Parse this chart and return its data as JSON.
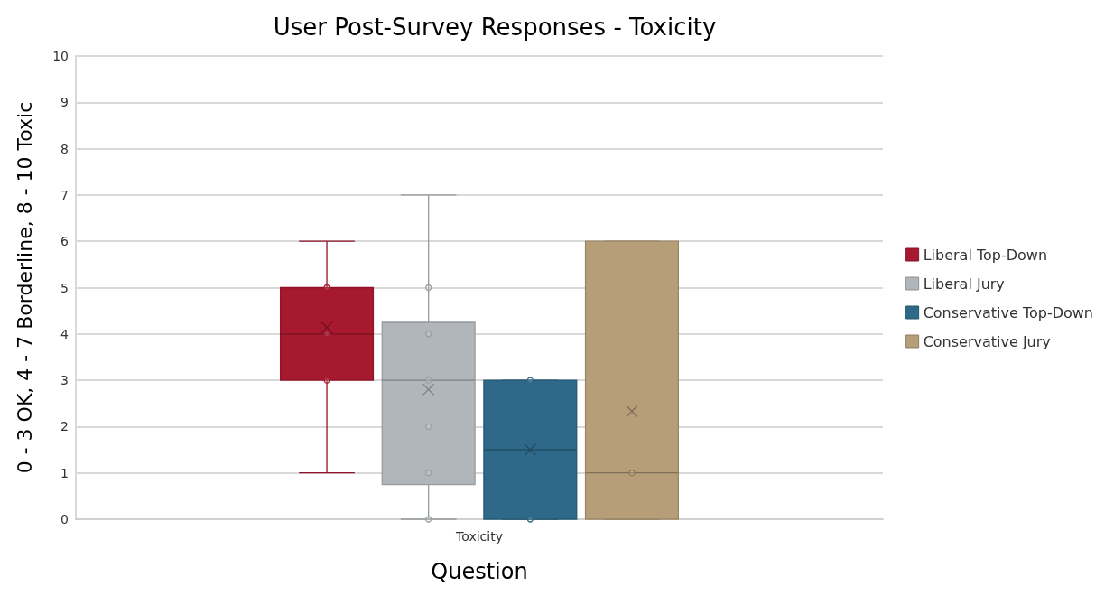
{
  "chart_data": {
    "type": "box",
    "title": "User Post-Survey Responses - Toxicity",
    "xlabel": "Question",
    "ylabel": "0 - 3 OK, 4 - 7 Borderline, 8 - 10 Toxic",
    "categories": [
      "Toxicity"
    ],
    "ylim": [
      0,
      10
    ],
    "yticks": [
      0,
      1,
      2,
      3,
      4,
      5,
      6,
      7,
      8,
      9,
      10
    ],
    "grid": "y",
    "legend": "right",
    "marker": "circle",
    "series": [
      {
        "name": "Liberal Top-Down",
        "color": "#a6192e",
        "boxes": [
          {
            "low": 1,
            "q1": 3,
            "median": 4,
            "q3": 5,
            "high": 6,
            "mean": 4.14
          }
        ]
      },
      {
        "name": "Liberal Jury",
        "color": "#b1b6ba",
        "boxes": [
          {
            "low": 0,
            "q1": 0.75,
            "median": 3,
            "q3": 4.25,
            "high": 7,
            "mean": 2.8
          }
        ]
      },
      {
        "name": "Conservative Top-Down",
        "color": "#2e6989",
        "boxes": [
          {
            "low": 0,
            "q1": 0,
            "median": 1.5,
            "q3": 3,
            "high": 3,
            "mean": 1.5
          }
        ]
      },
      {
        "name": "Conservative Jury",
        "color": "#b59e78",
        "boxes": [
          {
            "low": 0,
            "q1": 0,
            "median": 1,
            "q3": 6,
            "high": 6,
            "mean": 2.33
          }
        ]
      },
      {
        "type": "scatter",
        "color": "#a6192e",
        "x": [
          "Toxicity",
          "Toxicity",
          "Toxicity"
        ],
        "values": [
          3,
          4,
          5
        ]
      },
      {
        "type": "scatter",
        "color": "#9a9fa4",
        "x": [
          "Toxicity",
          "Toxicity",
          "Toxicity",
          "Toxicity",
          "Toxicity",
          "Toxicity"
        ],
        "values": [
          0,
          1,
          2,
          3,
          4,
          5
        ]
      },
      {
        "type": "scatter",
        "color": "#2e6989",
        "x": [
          "Toxicity",
          "Toxicity"
        ],
        "values": [
          0,
          3
        ]
      },
      {
        "type": "scatter",
        "color": "#8f7a56",
        "x": [
          "Toxicity"
        ],
        "values": [
          1
        ]
      }
    ]
  }
}
